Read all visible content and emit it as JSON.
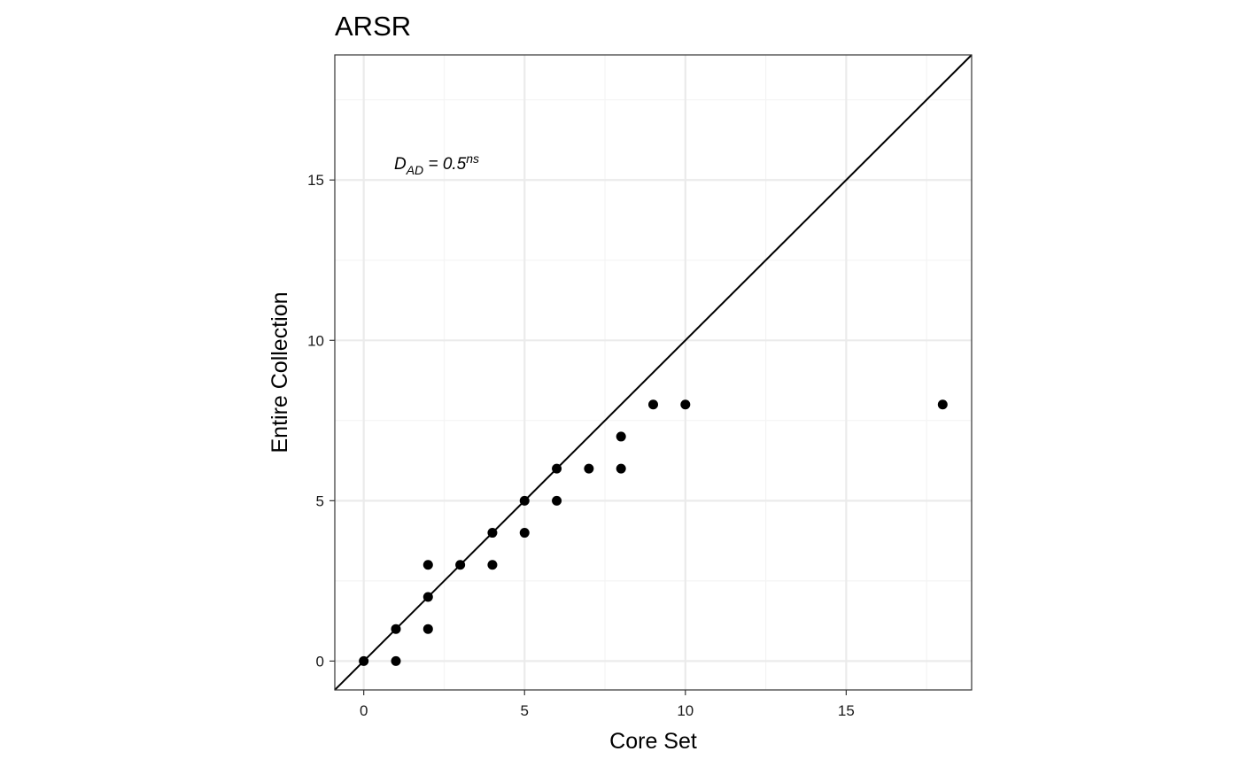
{
  "chart_data": {
    "type": "scatter",
    "title": "ARSR",
    "xlabel": "Core Set",
    "ylabel": "Entire Collection",
    "xlim": [
      -0.9,
      18.9
    ],
    "ylim": [
      -0.9,
      18.9
    ],
    "x_ticks": [
      0,
      5,
      10,
      15
    ],
    "y_ticks": [
      0,
      5,
      10,
      15
    ],
    "grid": true,
    "reference_line": "y = x",
    "annotation": {
      "D": "D",
      "sub": "AD",
      "value": " = 0.5",
      "sup": "ns",
      "x": 1,
      "y": 15.5
    },
    "points": [
      {
        "x": 0,
        "y": 0
      },
      {
        "x": 1,
        "y": 0
      },
      {
        "x": 1,
        "y": 1
      },
      {
        "x": 2,
        "y": 1
      },
      {
        "x": 2,
        "y": 2
      },
      {
        "x": 2,
        "y": 3
      },
      {
        "x": 3,
        "y": 3
      },
      {
        "x": 4,
        "y": 3
      },
      {
        "x": 4,
        "y": 4
      },
      {
        "x": 5,
        "y": 4
      },
      {
        "x": 5,
        "y": 5
      },
      {
        "x": 6,
        "y": 5
      },
      {
        "x": 6,
        "y": 6
      },
      {
        "x": 7,
        "y": 6
      },
      {
        "x": 8,
        "y": 6
      },
      {
        "x": 8,
        "y": 7
      },
      {
        "x": 9,
        "y": 8
      },
      {
        "x": 10,
        "y": 8
      },
      {
        "x": 18,
        "y": 8
      }
    ],
    "colors": {
      "points": "#000000",
      "line": "#000000",
      "grid_major": "#ebebeb",
      "grid_minor": "#f4f4f4",
      "border": "#333333"
    }
  }
}
